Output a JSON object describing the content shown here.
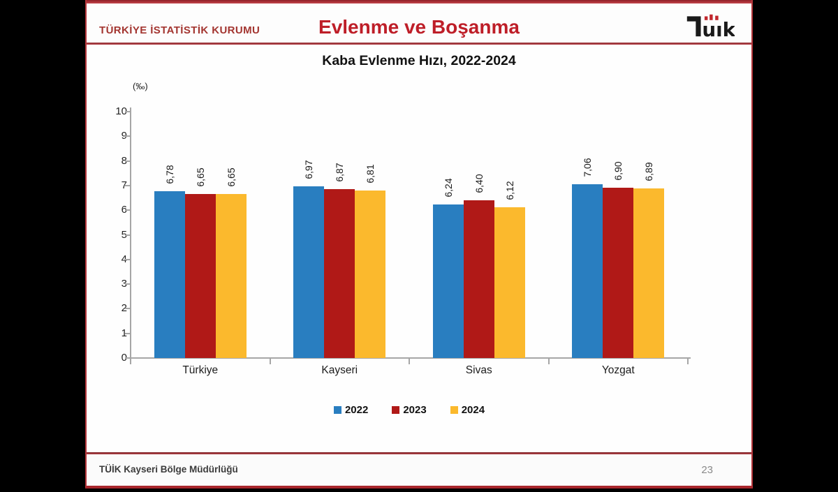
{
  "header": {
    "org": "TÜRKİYE İSTATİSTİK KURUMU",
    "title": "Evlenme ve Boşanma",
    "logo_text": "TÜİK"
  },
  "chart_data": {
    "type": "bar",
    "title": "Kaba Evlenme Hızı, 2022-2024",
    "unit_label": "(‰)",
    "categories": [
      "Türkiye",
      "Kayseri",
      "Sivas",
      "Yozgat"
    ],
    "series": [
      {
        "name": "2022",
        "color": "#297EC0",
        "values": [
          6.78,
          6.97,
          6.24,
          7.06
        ],
        "labels": [
          "6,78",
          "6,97",
          "6,24",
          "7,06"
        ]
      },
      {
        "name": "2023",
        "color": "#B01917",
        "values": [
          6.65,
          6.87,
          6.4,
          6.9
        ],
        "labels": [
          "6,65",
          "6,87",
          "6,40",
          "6,90"
        ]
      },
      {
        "name": "2024",
        "color": "#FBB92D",
        "values": [
          6.65,
          6.81,
          6.12,
          6.89
        ],
        "labels": [
          "6,65",
          "6,81",
          "6,12",
          "6,89"
        ]
      }
    ],
    "ylim": [
      0,
      10
    ],
    "yticks": [
      0,
      1,
      2,
      3,
      4,
      5,
      6,
      7,
      8,
      9,
      10
    ],
    "grid": false,
    "legend_position": "bottom",
    "decimal_separator": ","
  },
  "footer": {
    "left": "TÜİK Kayseri Bölge Müdürlüğü",
    "page": "23"
  },
  "colors": {
    "accent_red": "#BE1E28",
    "logo_red": "#C1272D",
    "axis_gray": "#A6A6A6",
    "background": "#000000"
  }
}
